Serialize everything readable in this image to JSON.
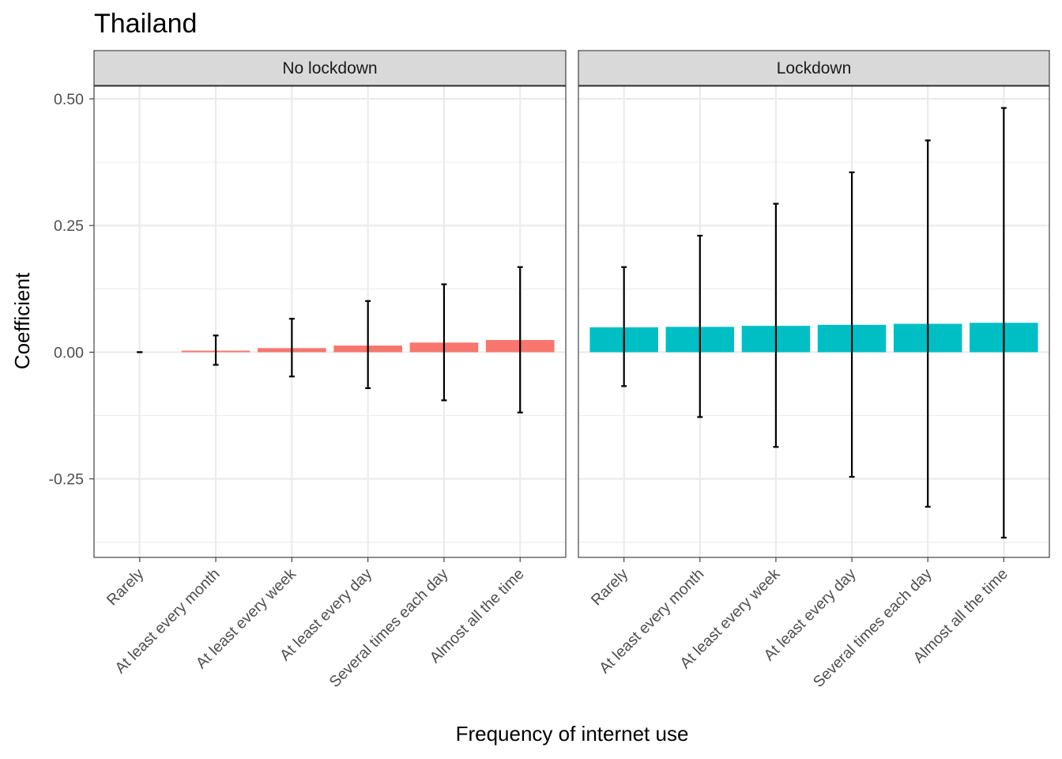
{
  "chart_data": {
    "type": "bar",
    "title": "Thailand",
    "xlabel": "Frequency of internet use",
    "ylabel": "Coefficient",
    "ylim": [
      -0.405,
      0.525
    ],
    "yticks": [
      -0.25,
      0.0,
      0.25,
      0.5
    ],
    "ytick_labels": [
      "-0.25",
      "0.00",
      "0.25",
      "0.50"
    ],
    "grid": true,
    "categories": [
      "Rarely",
      "At least every month",
      "At least every week",
      "At least every day",
      "Several times each day",
      "Almost all the time"
    ],
    "facets": [
      {
        "name": "No lockdown",
        "color": "#F8766D",
        "values": [
          0.0,
          0.003,
          0.008,
          0.013,
          0.019,
          0.024
        ],
        "error_low": [
          0.0,
          -0.025,
          -0.048,
          -0.071,
          -0.095,
          -0.119
        ],
        "error_high": [
          0.0,
          0.033,
          0.066,
          0.101,
          0.134,
          0.168
        ]
      },
      {
        "name": "Lockdown",
        "color": "#00BFC4",
        "values": [
          0.049,
          0.05,
          0.052,
          0.054,
          0.056,
          0.058
        ],
        "error_low": [
          -0.067,
          -0.128,
          -0.187,
          -0.246,
          -0.305,
          -0.366
        ],
        "error_high": [
          0.168,
          0.23,
          0.293,
          0.355,
          0.418,
          0.482
        ]
      }
    ]
  }
}
